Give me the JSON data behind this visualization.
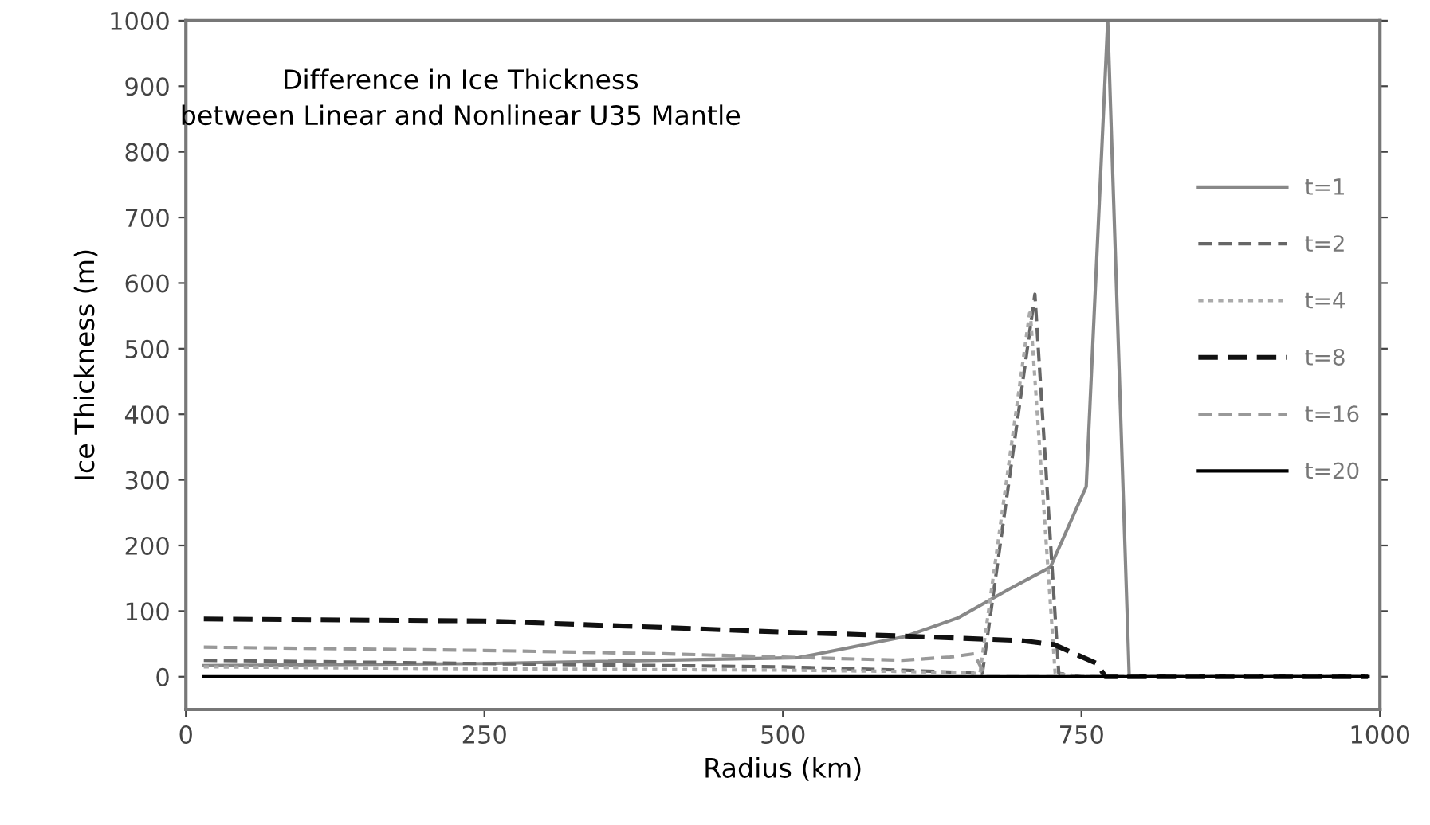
{
  "chart_data": {
    "type": "line",
    "title": "Difference in Ice Thickness\nbetween Linear and Nonlinear U35 Mantle",
    "xlabel": "Radius (km)",
    "ylabel": "Ice Thickness (m)",
    "xlim": [
      0,
      1000
    ],
    "xticks": [
      0,
      250,
      500,
      750,
      1000
    ],
    "ylim": [
      -50,
      1000
    ],
    "yticks": [
      0,
      100,
      200,
      300,
      400,
      500,
      600,
      700,
      800,
      900,
      1000
    ],
    "grid": false,
    "legend": "right",
    "marker": "none",
    "series": [
      {
        "name": "t=1",
        "color": "#888888",
        "line_style": "solid",
        "x": [
          15,
          250,
          513,
          602,
          647,
          691,
          724,
          754,
          772,
          790,
          990
        ],
        "values": [
          17,
          20,
          29,
          61,
          90,
          135,
          167,
          290,
          1000,
          0,
          0
        ]
      },
      {
        "name": "t=2",
        "color": "#666666",
        "line_style": "dashed",
        "x": [
          15,
          250,
          500,
          600,
          667,
          711,
          731,
          750,
          990
        ],
        "values": [
          25,
          20,
          15,
          10,
          5,
          583,
          5,
          0,
          0
        ]
      },
      {
        "name": "t=4",
        "color": "#aaaaaa",
        "line_style": "dotted",
        "x": [
          15,
          250,
          500,
          600,
          665,
          707,
          728,
          750,
          990
        ],
        "values": [
          15,
          12,
          10,
          8,
          5,
          560,
          5,
          0,
          0
        ]
      },
      {
        "name": "t=8",
        "color": "#111111",
        "line_style": "dashed",
        "x": [
          15,
          250,
          400,
          500,
          600,
          700,
          727,
          763,
          770,
          990
        ],
        "values": [
          88,
          85,
          75,
          68,
          62,
          55,
          49,
          20,
          0,
          0
        ]
      },
      {
        "name": "t=16",
        "color": "#999999",
        "line_style": "dashed",
        "x": [
          15,
          250,
          400,
          500,
          600,
          640,
          660,
          670,
          990
        ],
        "values": [
          45,
          40,
          35,
          30,
          25,
          30,
          35,
          0,
          0
        ]
      },
      {
        "name": "t=20",
        "color": "#000000",
        "line_style": "solid",
        "x": [
          15,
          250,
          500,
          750,
          990
        ],
        "values": [
          0,
          0,
          0,
          0,
          0
        ]
      }
    ]
  }
}
